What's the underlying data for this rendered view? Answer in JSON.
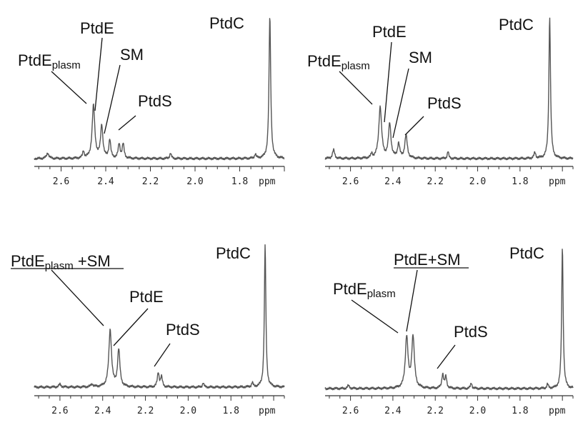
{
  "chart_data": [
    {
      "type": "line",
      "panel": "top-left",
      "x_unit": "ppm",
      "xlim": [
        2.72,
        1.6
      ],
      "ticks": [
        "2.6",
        "2.4",
        "2.2",
        "2.0",
        "1.8"
      ],
      "peaks": [
        {
          "x": 2.66,
          "y": 0.04,
          "w": 0.006
        },
        {
          "x": 2.5,
          "y": 0.05,
          "w": 0.004
        },
        {
          "x": 2.455,
          "y": 0.37,
          "w": 0.007
        },
        {
          "x": 2.418,
          "y": 0.23,
          "w": 0.006
        },
        {
          "x": 2.382,
          "y": 0.13,
          "w": 0.005
        },
        {
          "x": 2.34,
          "y": 0.1,
          "w": 0.005
        },
        {
          "x": 2.322,
          "y": 0.1,
          "w": 0.005
        },
        {
          "x": 2.11,
          "y": 0.04,
          "w": 0.004
        },
        {
          "x": 1.73,
          "y": 0.03,
          "w": 0.004
        },
        {
          "x": 1.665,
          "y": 1.0,
          "w": 0.0045
        }
      ],
      "labels": [
        {
          "id": "ptde-plasm",
          "main": "PtdE",
          "sub": "plasm",
          "peak_x": 2.455,
          "underline": false
        },
        {
          "id": "ptde",
          "main": "PtdE",
          "sub": "",
          "peak_x": 2.418,
          "underline": false
        },
        {
          "id": "sm",
          "main": "SM",
          "sub": "",
          "peak_x": 2.382,
          "underline": false
        },
        {
          "id": "ptds",
          "main": "PtdS",
          "sub": "",
          "peak_x": 2.33,
          "underline": false
        },
        {
          "id": "ptdc",
          "main": "PtdC",
          "sub": "",
          "peak_x": 1.665,
          "underline": false
        }
      ]
    },
    {
      "type": "line",
      "panel": "top-right",
      "x_unit": "ppm",
      "xlim": [
        2.72,
        1.55
      ],
      "ticks": [
        "2.6",
        "2.4",
        "2.2",
        "2.0",
        "1.8"
      ],
      "peaks": [
        {
          "x": 2.68,
          "y": 0.06,
          "w": 0.006
        },
        {
          "x": 2.5,
          "y": 0.03,
          "w": 0.004
        },
        {
          "x": 2.46,
          "y": 0.36,
          "w": 0.008
        },
        {
          "x": 2.415,
          "y": 0.24,
          "w": 0.007
        },
        {
          "x": 2.373,
          "y": 0.1,
          "w": 0.006
        },
        {
          "x": 2.338,
          "y": 0.16,
          "w": 0.007
        },
        {
          "x": 2.14,
          "y": 0.05,
          "w": 0.004
        },
        {
          "x": 1.73,
          "y": 0.04,
          "w": 0.005
        },
        {
          "x": 1.66,
          "y": 1.0,
          "w": 0.0045
        }
      ],
      "labels": [
        {
          "id": "ptde-plasm",
          "main": "PtdE",
          "sub": "plasm",
          "peak_x": 2.46,
          "underline": false
        },
        {
          "id": "ptde",
          "main": "PtdE",
          "sub": "",
          "peak_x": 2.415,
          "underline": false
        },
        {
          "id": "sm",
          "main": "SM",
          "sub": "",
          "peak_x": 2.373,
          "underline": false
        },
        {
          "id": "ptds",
          "main": "PtdS",
          "sub": "",
          "peak_x": 2.338,
          "underline": false
        },
        {
          "id": "ptdc",
          "main": "PtdC",
          "sub": "",
          "peak_x": 1.66,
          "underline": false
        }
      ]
    },
    {
      "type": "line",
      "panel": "bottom-left",
      "x_unit": "ppm",
      "xlim": [
        2.72,
        1.55
      ],
      "ticks": [
        "2.6",
        "2.4",
        "2.2",
        "2.0",
        "1.8"
      ],
      "peaks": [
        {
          "x": 2.6,
          "y": 0.02,
          "w": 0.006
        },
        {
          "x": 2.45,
          "y": 0.02,
          "w": 0.006
        },
        {
          "x": 2.365,
          "y": 0.4,
          "w": 0.0075
        },
        {
          "x": 2.325,
          "y": 0.26,
          "w": 0.0065
        },
        {
          "x": 2.14,
          "y": 0.1,
          "w": 0.005
        },
        {
          "x": 2.125,
          "y": 0.07,
          "w": 0.005
        },
        {
          "x": 1.93,
          "y": 0.03,
          "w": 0.004
        },
        {
          "x": 1.7,
          "y": 0.03,
          "w": 0.004
        },
        {
          "x": 1.64,
          "y": 1.0,
          "w": 0.0042
        }
      ],
      "labels": [
        {
          "id": "ptde-plasm-sm",
          "main": "PtdE",
          "sub": "plasm",
          "suffix": " +SM",
          "peak_x": 2.365,
          "underline": true
        },
        {
          "id": "ptde",
          "main": "PtdE",
          "sub": "",
          "peak_x": 2.325,
          "underline": false
        },
        {
          "id": "ptds",
          "main": "PtdS",
          "sub": "",
          "peak_x": 2.133,
          "underline": false
        },
        {
          "id": "ptdc",
          "main": "PtdC",
          "sub": "",
          "peak_x": 1.64,
          "underline": false
        }
      ]
    },
    {
      "type": "line",
      "panel": "bottom-right",
      "x_unit": "ppm",
      "xlim": [
        2.72,
        1.55
      ],
      "ticks": [
        "2.6",
        "2.4",
        "2.2",
        "2.0",
        "1.8"
      ],
      "peaks": [
        {
          "x": 2.61,
          "y": 0.02,
          "w": 0.006
        },
        {
          "x": 2.335,
          "y": 0.36,
          "w": 0.0075
        },
        {
          "x": 2.305,
          "y": 0.36,
          "w": 0.0075
        },
        {
          "x": 2.165,
          "y": 0.1,
          "w": 0.005
        },
        {
          "x": 2.15,
          "y": 0.08,
          "w": 0.005
        },
        {
          "x": 2.03,
          "y": 0.04,
          "w": 0.004
        },
        {
          "x": 1.67,
          "y": 0.03,
          "w": 0.004
        },
        {
          "x": 1.6,
          "y": 1.0,
          "w": 0.0042
        }
      ],
      "labels": [
        {
          "id": "ptde-plasm",
          "main": "PtdE",
          "sub": "plasm",
          "peak_x": 2.335,
          "underline": false
        },
        {
          "id": "ptde-sm",
          "main": "PtdE+SM",
          "sub": "",
          "peak_x": 2.305,
          "underline": true
        },
        {
          "id": "ptds",
          "main": "PtdS",
          "sub": "",
          "peak_x": 2.157,
          "underline": false
        },
        {
          "id": "ptdc",
          "main": "PtdC",
          "sub": "",
          "peak_x": 1.6,
          "underline": false
        }
      ]
    }
  ]
}
